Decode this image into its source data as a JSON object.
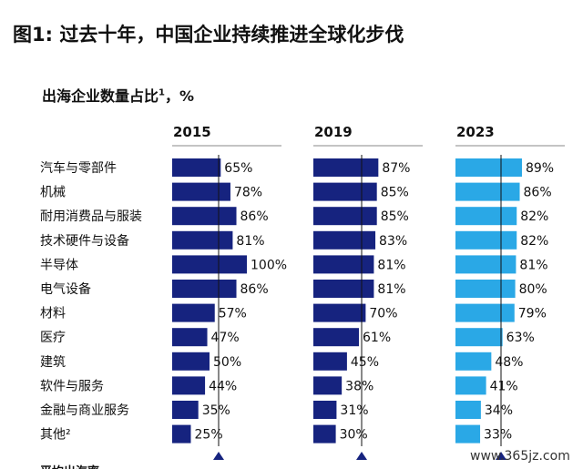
{
  "title": "图1: 过去十年，中国企业持续推进全球化步伐",
  "subtitle_text": "出海企业数量占比",
  "subtitle_sup": "1",
  "subtitle_unit": "，%",
  "watermark": "www.365jz.com",
  "footer_partial": "平均出海率",
  "colors": {
    "dark": "#16237f",
    "light": "#2aa8e6",
    "avg_marker": "#16237f",
    "avg_line": "#111111"
  },
  "chart_data": {
    "type": "bar",
    "orientation": "horizontal",
    "categories": [
      "汽车与零部件",
      "机械",
      "耐用消费品与服装",
      "技术硬件与设备",
      "半导体",
      "电气设备",
      "材料",
      "医疗",
      "建筑",
      "软件与服务",
      "金融与商业服务",
      "其他²"
    ],
    "series": [
      {
        "name": "2015",
        "values": [
          65,
          78,
          86,
          81,
          100,
          86,
          57,
          47,
          50,
          44,
          35,
          25
        ]
      },
      {
        "name": "2019",
        "values": [
          87,
          85,
          85,
          83,
          81,
          81,
          70,
          61,
          45,
          38,
          31,
          30
        ]
      },
      {
        "name": "2023",
        "values": [
          89,
          86,
          82,
          82,
          81,
          80,
          79,
          63,
          48,
          41,
          34,
          33
        ]
      }
    ],
    "value_suffix": "%",
    "ylabel": "出海企业数量占比"
  }
}
